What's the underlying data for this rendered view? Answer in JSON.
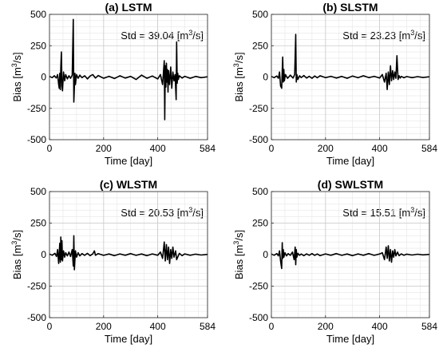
{
  "chart_data": [
    {
      "type": "line",
      "title": "(a) LSTM",
      "xlabel": "Time [day]",
      "ylabel": "Bias [m^3/s]",
      "annotation": "Std = 39.04 [m^3/s]",
      "xlim": [
        0,
        584
      ],
      "ylim": [
        -500,
        500
      ],
      "xticks": [
        0,
        200,
        400,
        584
      ],
      "yticks": [
        -500,
        -250,
        0,
        250,
        500
      ],
      "grid": true,
      "series": [
        {
          "x": [
            0,
            10,
            18,
            25,
            30,
            34,
            36,
            38,
            40,
            42,
            44,
            46,
            48,
            52,
            56,
            60,
            66,
            72,
            78,
            84,
            88,
            90,
            92,
            94,
            96,
            100,
            106,
            112,
            120,
            130,
            140,
            150,
            160,
            170,
            180,
            200,
            220,
            240,
            260,
            280,
            300,
            320,
            340,
            360,
            380,
            400,
            410,
            418,
            424,
            426,
            428,
            430,
            432,
            434,
            436,
            438,
            440,
            444,
            448,
            452,
            456,
            460,
            464,
            468,
            470,
            472,
            474,
            476,
            480,
            490,
            500,
            520,
            540,
            560,
            584
          ],
          "y": [
            5,
            -5,
            10,
            -8,
            20,
            -60,
            -90,
            30,
            -100,
            80,
            200,
            -70,
            -110,
            40,
            -30,
            20,
            -15,
            10,
            -10,
            15,
            460,
            -200,
            -80,
            30,
            -60,
            20,
            -10,
            15,
            -5,
            10,
            -15,
            8,
            20,
            -8,
            12,
            -10,
            6,
            -12,
            10,
            -8,
            5,
            -20,
            15,
            -10,
            8,
            -15,
            20,
            -60,
            130,
            -340,
            90,
            -80,
            110,
            -40,
            60,
            -120,
            50,
            -60,
            80,
            -90,
            40,
            -30,
            20,
            -180,
            280,
            -50,
            30,
            -20,
            10,
            -8,
            6,
            -10,
            5,
            -5,
            2
          ]
        }
      ]
    },
    {
      "type": "line",
      "title": "(b) SLSTM",
      "xlabel": "Time [day]",
      "ylabel": "Bias [m^3/s]",
      "annotation": "Std = 23.23 [m^3/s]",
      "xlim": [
        0,
        584
      ],
      "ylim": [
        -500,
        500
      ],
      "xticks": [
        0,
        200,
        400,
        584
      ],
      "yticks": [
        -500,
        -250,
        0,
        250,
        500
      ],
      "grid": true,
      "series": [
        {
          "x": [
            0,
            10,
            20,
            26,
            30,
            34,
            38,
            40,
            42,
            44,
            46,
            48,
            52,
            60,
            70,
            80,
            86,
            90,
            92,
            94,
            98,
            104,
            110,
            120,
            130,
            140,
            150,
            160,
            170,
            180,
            200,
            220,
            240,
            260,
            280,
            300,
            320,
            340,
            360,
            380,
            400,
            410,
            418,
            424,
            428,
            432,
            436,
            440,
            444,
            448,
            452,
            456,
            460,
            464,
            468,
            472,
            476,
            480,
            490,
            500,
            520,
            540,
            560,
            584
          ],
          "y": [
            5,
            -5,
            8,
            -10,
            40,
            -70,
            -90,
            50,
            160,
            -40,
            60,
            -30,
            20,
            -10,
            15,
            -8,
            20,
            340,
            -40,
            20,
            -20,
            10,
            -5,
            12,
            -8,
            6,
            -10,
            8,
            -6,
            10,
            -5,
            6,
            -8,
            5,
            -10,
            8,
            -6,
            10,
            -5,
            6,
            -8,
            20,
            -40,
            30,
            -100,
            40,
            -60,
            90,
            -30,
            50,
            -20,
            40,
            -10,
            170,
            -20,
            10,
            -8,
            5,
            -6,
            4,
            -5,
            3,
            -4,
            2
          ]
        }
      ]
    },
    {
      "type": "line",
      "title": "(c) WLSTM",
      "xlabel": "Time [day]",
      "ylabel": "Bias [m^3/s]",
      "annotation": "Std = 20.53 [m^3/s]",
      "xlim": [
        0,
        584
      ],
      "ylim": [
        -500,
        500
      ],
      "xticks": [
        0,
        200,
        400,
        584
      ],
      "yticks": [
        -500,
        -250,
        0,
        250,
        500
      ],
      "grid": true,
      "series": [
        {
          "x": [
            0,
            10,
            20,
            26,
            30,
            34,
            38,
            40,
            42,
            44,
            46,
            48,
            52,
            56,
            60,
            66,
            72,
            78,
            84,
            88,
            90,
            92,
            94,
            96,
            100,
            106,
            112,
            120,
            130,
            140,
            150,
            160,
            166,
            170,
            180,
            200,
            220,
            240,
            260,
            280,
            300,
            320,
            340,
            360,
            380,
            400,
            410,
            418,
            424,
            428,
            432,
            436,
            440,
            444,
            448,
            452,
            456,
            460,
            466,
            470,
            480,
            490,
            500,
            520,
            540,
            560,
            584
          ],
          "y": [
            5,
            -5,
            10,
            -15,
            40,
            -70,
            90,
            -60,
            140,
            -40,
            110,
            -50,
            30,
            -20,
            15,
            -10,
            20,
            -15,
            40,
            -90,
            150,
            -120,
            -40,
            30,
            -20,
            15,
            -10,
            8,
            -6,
            10,
            -8,
            6,
            30,
            -5,
            8,
            -6,
            5,
            -8,
            6,
            -5,
            8,
            -6,
            5,
            -8,
            6,
            -5,
            20,
            -30,
            100,
            -50,
            80,
            -40,
            60,
            -70,
            40,
            -30,
            60,
            -20,
            30,
            -40,
            10,
            -8,
            6,
            -5,
            4,
            -3,
            2
          ]
        }
      ]
    },
    {
      "type": "line",
      "title": "(d) SWLSTM",
      "xlabel": "Time [day]",
      "ylabel": "Bias [m^3/s]",
      "annotation": "Std = 15.51 [m^3/s]",
      "xlim": [
        0,
        584
      ],
      "ylim": [
        -500,
        500
      ],
      "xticks": [
        0,
        200,
        400,
        584
      ],
      "yticks": [
        -500,
        -250,
        0,
        250,
        500
      ],
      "grid": true,
      "series": [
        {
          "x": [
            0,
            10,
            20,
            26,
            30,
            34,
            38,
            40,
            42,
            44,
            46,
            50,
            56,
            62,
            70,
            78,
            84,
            88,
            90,
            92,
            94,
            98,
            104,
            110,
            120,
            130,
            140,
            150,
            160,
            170,
            180,
            200,
            220,
            240,
            260,
            280,
            300,
            320,
            340,
            360,
            380,
            400,
            410,
            418,
            424,
            428,
            432,
            436,
            440,
            444,
            448,
            452,
            456,
            460,
            466,
            472,
            480,
            490,
            500,
            520,
            540,
            560,
            584
          ],
          "y": [
            5,
            -5,
            8,
            -10,
            30,
            -50,
            -110,
            95,
            -30,
            40,
            -20,
            15,
            -10,
            8,
            -6,
            20,
            -40,
            60,
            -80,
            40,
            -20,
            10,
            -6,
            5,
            -8,
            6,
            -5,
            8,
            -6,
            5,
            -8,
            6,
            -5,
            8,
            -6,
            5,
            -8,
            6,
            -5,
            8,
            -6,
            5,
            15,
            -40,
            60,
            -30,
            70,
            -50,
            40,
            -60,
            30,
            -20,
            40,
            -10,
            20,
            -8,
            6,
            -5,
            4,
            -3,
            3,
            -2,
            2
          ]
        }
      ]
    }
  ]
}
